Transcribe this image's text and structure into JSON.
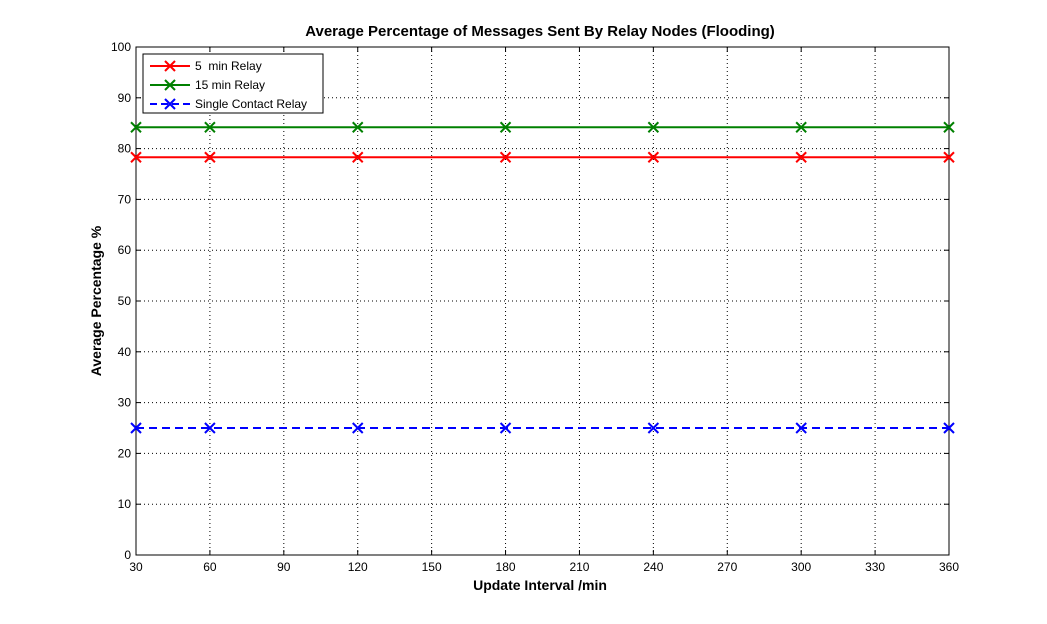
{
  "chart_data": {
    "type": "line",
    "title": "Average Percentage of Messages Sent By Relay Nodes (Flooding)",
    "xlabel": "Update Interval /min",
    "ylabel": "Average Percentage %",
    "xlim": [
      30,
      360
    ],
    "ylim": [
      0,
      100
    ],
    "xticks": [
      "30",
      "60",
      "90",
      "120",
      "150",
      "180",
      "210",
      "240",
      "270",
      "300",
      "330",
      "360"
    ],
    "yticks": [
      "0",
      "10",
      "20",
      "30",
      "40",
      "50",
      "60",
      "70",
      "80",
      "90",
      "100"
    ],
    "x": [
      30,
      60,
      120,
      180,
      240,
      300,
      360
    ],
    "grid": true,
    "legend_position": "top-left",
    "series": [
      {
        "name": "5  min Relay",
        "values": [
          78.3,
          78.3,
          78.3,
          78.3,
          78.3,
          78.3,
          78.3
        ],
        "color": "#ff0000",
        "line_style": "solid",
        "marker": "x"
      },
      {
        "name": "15 min Relay",
        "values": [
          84.2,
          84.2,
          84.2,
          84.2,
          84.2,
          84.2,
          84.2
        ],
        "color": "#008000",
        "line_style": "solid",
        "marker": "x"
      },
      {
        "name": "Single Contact Relay",
        "values": [
          25,
          25,
          25,
          25,
          25,
          25,
          25
        ],
        "color": "#0000ff",
        "line_style": "dashed",
        "marker": "x"
      }
    ]
  }
}
